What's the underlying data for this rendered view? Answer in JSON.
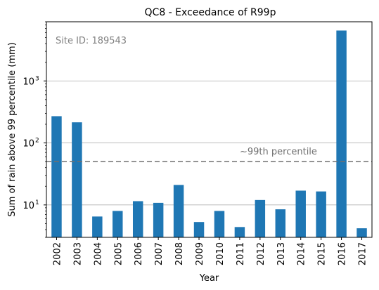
{
  "chart_data": {
    "type": "bar",
    "title": "QC8 - Exceedance of R99p",
    "xlabel": "Year",
    "ylabel": "Sum of rain above 99 percentile (mm)",
    "yscale": "log",
    "ylim": [
      3,
      9000
    ],
    "y_ticks": [
      {
        "value": 10,
        "label": "10",
        "exp": "1"
      },
      {
        "value": 100,
        "label": "10",
        "exp": "2"
      },
      {
        "value": 1000,
        "label": "10",
        "exp": "3"
      }
    ],
    "grid": "y-major",
    "categories": [
      "2002",
      "2003",
      "2004",
      "2005",
      "2006",
      "2007",
      "2008",
      "2009",
      "2010",
      "2011",
      "2012",
      "2013",
      "2014",
      "2015",
      "2016",
      "2017"
    ],
    "values": [
      270,
      215,
      6.5,
      8,
      11.5,
      10.8,
      21,
      5.3,
      8,
      4.4,
      12,
      8.5,
      17,
      16.5,
      6500,
      4.2
    ],
    "bar_color": "#1f77b4",
    "reference_line": {
      "value": 50,
      "label": "~99th percentile",
      "color": "#707070",
      "style": "dashed"
    },
    "annotation": {
      "text": "Site ID: 189543",
      "color": "#808080",
      "position": "top-left"
    }
  }
}
